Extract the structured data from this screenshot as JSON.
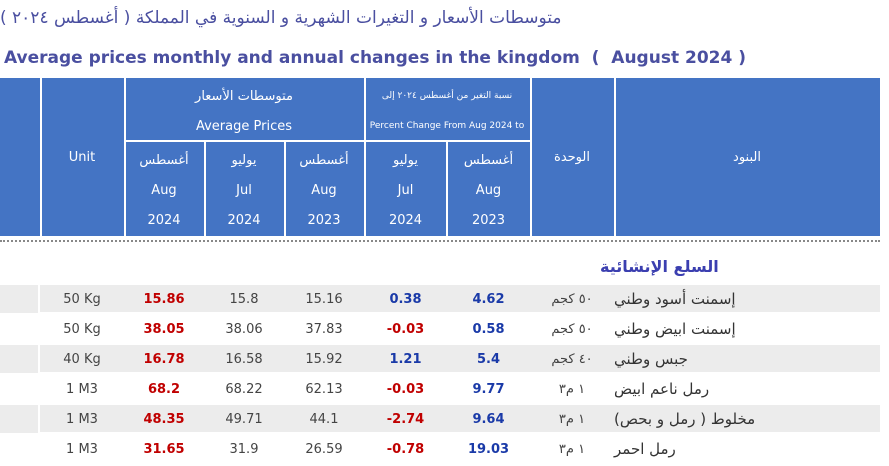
{
  "header": {
    "title_ar": "متوسطات الأسعار و التغيرات الشهرية و السنوية في المملكة ( أغسطس ٢٠٢٤ )",
    "title_en": "Average prices monthly and annual changes in the kingdom  (  August 2024 )"
  },
  "table": {
    "col_unit_en": "Unit",
    "col_unit_ar": "الوحدة",
    "col_item": "البنود",
    "group_prices": {
      "ar": "متوسطات الأسعار",
      "en": "Average Prices"
    },
    "group_change": {
      "ar": "نسبة التغير من أغسطس ٢٠٢٤ إلى",
      "en": "Percent Change From Aug 2024 to"
    },
    "price_periods": [
      {
        "ar": "أغسطس",
        "en": "Aug",
        "year": 2024
      },
      {
        "ar": "يوليو",
        "en": "Jul",
        "year": 2024
      },
      {
        "ar": "أغسطس",
        "en": "Aug",
        "year": 2023
      }
    ],
    "change_periods": [
      {
        "ar": "يوليو",
        "en": "Jul",
        "year": 2024
      },
      {
        "ar": "أغسطس",
        "en": "Aug",
        "year": 2023
      }
    ],
    "section": "السلع الإنشائية",
    "rows": [
      {
        "item": "إسمنت أسود وطني",
        "unit_ar": "٥٠ كجم",
        "change": [
          0.38,
          4.62
        ],
        "prices": [
          15.86,
          15.8,
          15.16
        ],
        "unit_en": "50 Kg"
      },
      {
        "item": "إسمنت ابيض وطني",
        "unit_ar": "٥٠ كجم",
        "change": [
          -0.03,
          0.58
        ],
        "prices": [
          38.05,
          38.06,
          37.83
        ],
        "unit_en": "50 Kg"
      },
      {
        "item": "جبس وطني",
        "unit_ar": "٤٠ كجم",
        "change": [
          1.21,
          5.4
        ],
        "prices": [
          16.78,
          16.58,
          15.92
        ],
        "unit_en": "40 Kg"
      },
      {
        "item": "رمل ناعم ابيض",
        "unit_ar": "١ م٣",
        "change": [
          -0.03,
          9.77
        ],
        "prices": [
          68.2,
          68.22,
          62.13
        ],
        "unit_en": "1 M3"
      },
      {
        "item": "مخلوط ( رمل و بحص)",
        "unit_ar": "١ م٣",
        "change": [
          -2.74,
          9.64
        ],
        "prices": [
          48.35,
          49.71,
          44.1
        ],
        "unit_en": "1 M3"
      },
      {
        "item": "رمل احمر",
        "unit_ar": "١ م٣",
        "change": [
          -0.78,
          19.03
        ],
        "prices": [
          31.65,
          31.9,
          26.59
        ],
        "unit_en": "1 M3"
      }
    ]
  }
}
